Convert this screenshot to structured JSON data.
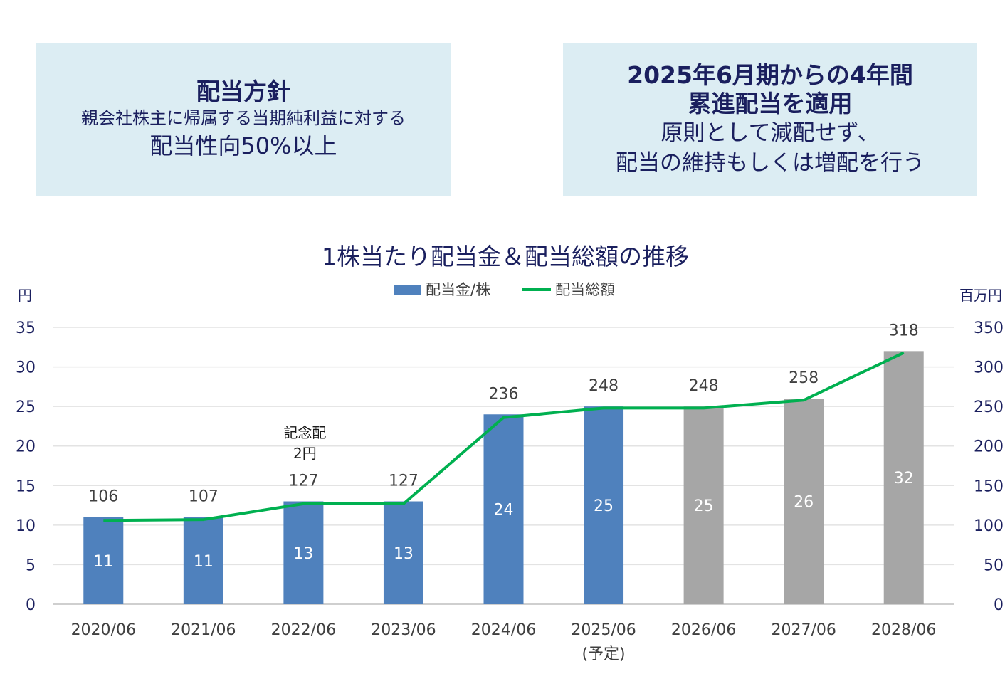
{
  "policy_left": {
    "title": "配当方針",
    "line1": "親会社株主に帰属する当期純利益に対する",
    "line2": "配当性向50%以上"
  },
  "policy_right": {
    "title1": "2025年6月期からの4年間",
    "title2": "累進配当を適用",
    "line1": "原則として減配せず、",
    "line2": "配当の維持もしくは増配を行う"
  },
  "chart_data": {
    "type": "bar",
    "title": "1株当たり配当金＆配当総額の推移",
    "y_left_unit": "円",
    "y_right_unit": "百万円",
    "ylim_left": [
      0,
      35
    ],
    "ylim_right": [
      0,
      350
    ],
    "y_left_ticks": [
      0,
      5,
      10,
      15,
      20,
      25,
      30,
      35
    ],
    "y_right_ticks": [
      0,
      50,
      100,
      150,
      200,
      250,
      300,
      350
    ],
    "grid": true,
    "legend_position": "top",
    "categories": [
      "2020/06",
      "2021/06",
      "2022/06",
      "2023/06",
      "2024/06",
      "2025/06",
      "2026/06",
      "2027/06",
      "2028/06"
    ],
    "category_sublabels": [
      "",
      "",
      "",
      "",
      "",
      "(予定)",
      "",
      "",
      ""
    ],
    "series": [
      {
        "name": "配当金/株",
        "type": "bar",
        "axis": "left",
        "values": [
          11,
          11,
          13,
          13,
          24,
          25,
          25,
          26,
          32
        ],
        "colors": [
          "#4f81bd",
          "#4f81bd",
          "#4f81bd",
          "#4f81bd",
          "#4f81bd",
          "#4f81bd",
          "#a6a6a6",
          "#a6a6a6",
          "#a6a6a6"
        ]
      },
      {
        "name": "配当総額",
        "type": "line",
        "axis": "right",
        "color": "#00b050",
        "values": [
          106,
          107,
          127,
          127,
          236,
          248,
          248,
          258,
          318
        ]
      }
    ],
    "annotations": [
      {
        "category": "2022/06",
        "lines": [
          "記念配",
          "2円"
        ]
      }
    ]
  }
}
